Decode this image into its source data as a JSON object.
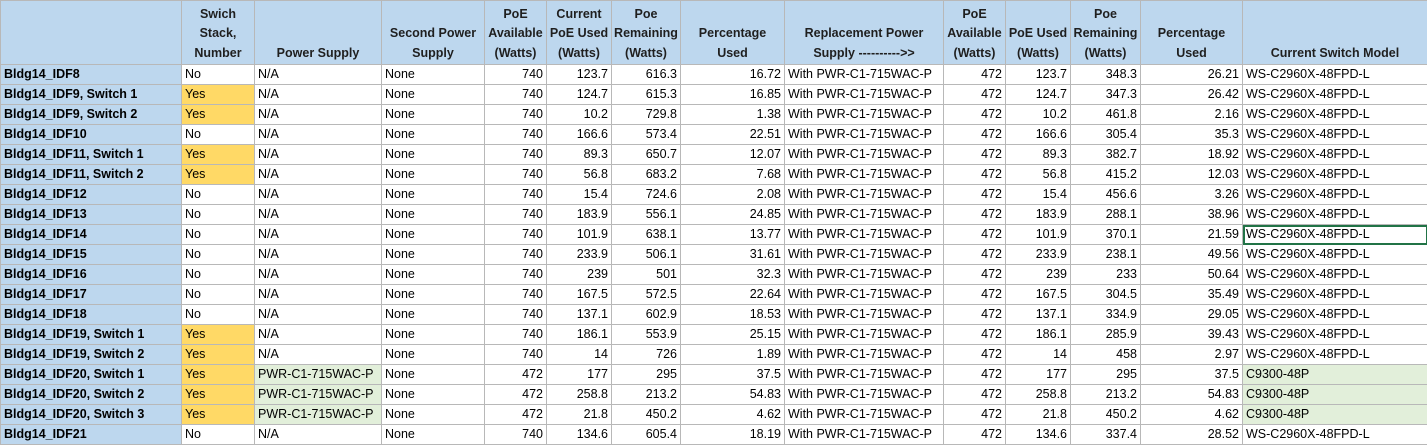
{
  "colors": {
    "header_bg": "#bdd7ee",
    "yes_highlight": "#ffd966",
    "new_hardware_highlight": "#e2efda",
    "selection_border": "#217346"
  },
  "sheet": {
    "headers": [
      "",
      "Swich Stack, Number",
      "Power Supply",
      "Second Power Supply",
      "PoE Available (Watts)",
      "Current PoE Used (Watts)",
      "Poe Remaining (Watts)",
      "Percentage Used",
      "Replacement Power Supply ---------->>",
      "PoE Available (Watts)",
      "PoE Used (Watts)",
      "Poe Remaining (Watts)",
      "Percentage Used",
      "Current Switch Model"
    ],
    "rows": [
      [
        "Bldg14_IDF8",
        "No",
        "N/A",
        "None",
        "740",
        "123.7",
        "616.3",
        "16.72",
        "With PWR-C1-715WAC-P",
        "472",
        "123.7",
        "348.3",
        "26.21",
        "WS-C2960X-48FPD-L"
      ],
      [
        "Bldg14_IDF9, Switch 1",
        "Yes",
        "N/A",
        "None",
        "740",
        "124.7",
        "615.3",
        "16.85",
        "With PWR-C1-715WAC-P",
        "472",
        "124.7",
        "347.3",
        "26.42",
        "WS-C2960X-48FPD-L"
      ],
      [
        "Bldg14_IDF9, Switch 2",
        "Yes",
        "N/A",
        "None",
        "740",
        "10.2",
        "729.8",
        "1.38",
        "With PWR-C1-715WAC-P",
        "472",
        "10.2",
        "461.8",
        "2.16",
        "WS-C2960X-48FPD-L"
      ],
      [
        "Bldg14_IDF10",
        "No",
        "N/A",
        "None",
        "740",
        "166.6",
        "573.4",
        "22.51",
        "With PWR-C1-715WAC-P",
        "472",
        "166.6",
        "305.4",
        "35.3",
        "WS-C2960X-48FPD-L"
      ],
      [
        "Bldg14_IDF11, Switch 1",
        "Yes",
        "N/A",
        "None",
        "740",
        "89.3",
        "650.7",
        "12.07",
        "With PWR-C1-715WAC-P",
        "472",
        "89.3",
        "382.7",
        "18.92",
        "WS-C2960X-48FPD-L"
      ],
      [
        "Bldg14_IDF11, Switch 2",
        "Yes",
        "N/A",
        "None",
        "740",
        "56.8",
        "683.2",
        "7.68",
        "With PWR-C1-715WAC-P",
        "472",
        "56.8",
        "415.2",
        "12.03",
        "WS-C2960X-48FPD-L"
      ],
      [
        "Bldg14_IDF12",
        "No",
        "N/A",
        "None",
        "740",
        "15.4",
        "724.6",
        "2.08",
        "With PWR-C1-715WAC-P",
        "472",
        "15.4",
        "456.6",
        "3.26",
        "WS-C2960X-48FPD-L"
      ],
      [
        "Bldg14_IDF13",
        "No",
        "N/A",
        "None",
        "740",
        "183.9",
        "556.1",
        "24.85",
        "With PWR-C1-715WAC-P",
        "472",
        "183.9",
        "288.1",
        "38.96",
        "WS-C2960X-48FPD-L"
      ],
      [
        "Bldg14_IDF14",
        "No",
        "N/A",
        "None",
        "740",
        "101.9",
        "638.1",
        "13.77",
        "With PWR-C1-715WAC-P",
        "472",
        "101.9",
        "370.1",
        "21.59",
        "WS-C2960X-48FPD-L"
      ],
      [
        "Bldg14_IDF15",
        "No",
        "N/A",
        "None",
        "740",
        "233.9",
        "506.1",
        "31.61",
        "With PWR-C1-715WAC-P",
        "472",
        "233.9",
        "238.1",
        "49.56",
        "WS-C2960X-48FPD-L"
      ],
      [
        "Bldg14_IDF16",
        "No",
        "N/A",
        "None",
        "740",
        "239",
        "501",
        "32.3",
        "With PWR-C1-715WAC-P",
        "472",
        "239",
        "233",
        "50.64",
        "WS-C2960X-48FPD-L"
      ],
      [
        "Bldg14_IDF17",
        "No",
        "N/A",
        "None",
        "740",
        "167.5",
        "572.5",
        "22.64",
        "With PWR-C1-715WAC-P",
        "472",
        "167.5",
        "304.5",
        "35.49",
        "WS-C2960X-48FPD-L"
      ],
      [
        "Bldg14_IDF18",
        "No",
        "N/A",
        "None",
        "740",
        "137.1",
        "602.9",
        "18.53",
        "With PWR-C1-715WAC-P",
        "472",
        "137.1",
        "334.9",
        "29.05",
        "WS-C2960X-48FPD-L"
      ],
      [
        "Bldg14_IDF19, Switch 1",
        "Yes",
        "N/A",
        "None",
        "740",
        "186.1",
        "553.9",
        "25.15",
        "With PWR-C1-715WAC-P",
        "472",
        "186.1",
        "285.9",
        "39.43",
        "WS-C2960X-48FPD-L"
      ],
      [
        "Bldg14_IDF19, Switch 2",
        "Yes",
        "N/A",
        "None",
        "740",
        "14",
        "726",
        "1.89",
        "With PWR-C1-715WAC-P",
        "472",
        "14",
        "458",
        "2.97",
        "WS-C2960X-48FPD-L"
      ],
      [
        "Bldg14_IDF20, Switch 1",
        "Yes",
        "PWR-C1-715WAC-P",
        "None",
        "472",
        "177",
        "295",
        "37.5",
        "With PWR-C1-715WAC-P",
        "472",
        "177",
        "295",
        "37.5",
        "C9300-48P"
      ],
      [
        "Bldg14_IDF20, Switch 2",
        "Yes",
        "PWR-C1-715WAC-P",
        "None",
        "472",
        "258.8",
        "213.2",
        "54.83",
        "With PWR-C1-715WAC-P",
        "472",
        "258.8",
        "213.2",
        "54.83",
        "C9300-48P"
      ],
      [
        "Bldg14_IDF20, Switch 3",
        "Yes",
        "PWR-C1-715WAC-P",
        "None",
        "472",
        "21.8",
        "450.2",
        "4.62",
        "With PWR-C1-715WAC-P",
        "472",
        "21.8",
        "450.2",
        "4.62",
        "C9300-48P"
      ],
      [
        "Bldg14_IDF21",
        "No",
        "N/A",
        "None",
        "740",
        "134.6",
        "605.4",
        "18.19",
        "With PWR-C1-715WAC-P",
        "472",
        "134.6",
        "337.4",
        "28.52",
        "WS-C2960X-48FPD-L"
      ]
    ]
  }
}
